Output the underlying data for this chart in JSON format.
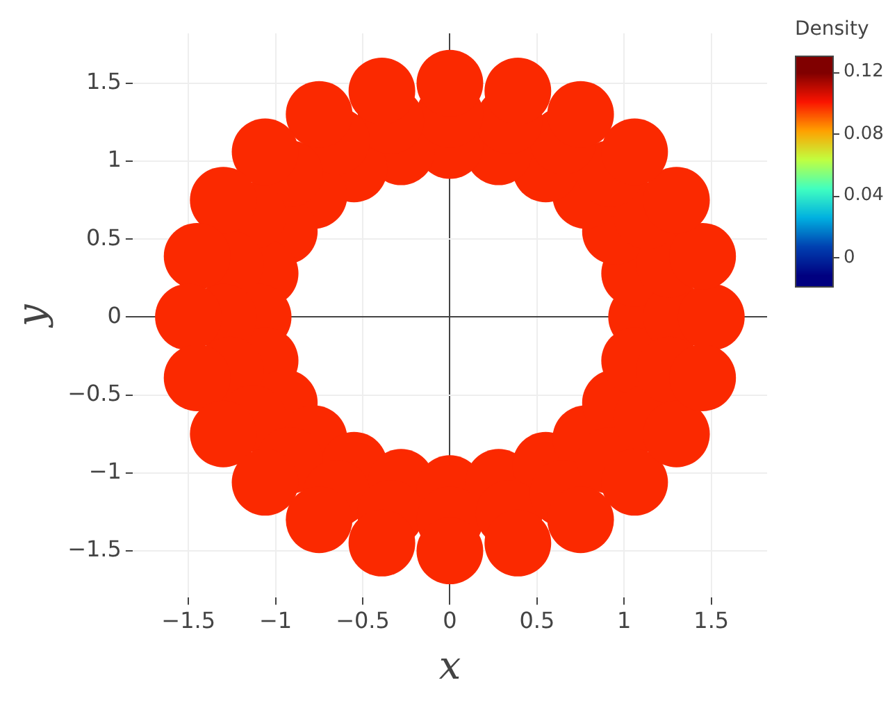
{
  "chart_data": {
    "type": "scatter",
    "xlabel": "x",
    "ylabel": "y",
    "clabel": "Density",
    "grid": true,
    "marker": "circle",
    "legend": false,
    "xlim": [
      -1.82,
      1.82
    ],
    "ylim": [
      -1.8,
      1.82
    ],
    "xticks": [
      {
        "value": -1.5,
        "label": "−1.5"
      },
      {
        "value": -1,
        "label": "−1"
      },
      {
        "value": -0.5,
        "label": "−0.5"
      },
      0,
      0.5,
      1,
      1.5
    ],
    "yticks": [
      {
        "value": -1.5,
        "label": "−1.5"
      },
      {
        "value": -1,
        "label": "−1"
      },
      {
        "value": -0.5,
        "label": "−0.5"
      },
      0,
      0.5,
      1,
      1.5
    ],
    "clim": [
      -0.019,
      0.131
    ],
    "cticks": [
      0,
      0.04,
      0.08,
      0.12
    ],
    "series": [
      {
        "x": [
          1.1,
          1.06,
          0.95,
          0.78,
          0.55,
          0.28,
          0,
          -0.28,
          -0.55,
          -0.78,
          -0.95,
          -1.06,
          -1.1,
          -1.06,
          -0.95,
          -0.78,
          -0.55,
          -0.28,
          0,
          0.28,
          0.55,
          0.78,
          0.95,
          1.06,
          1.3,
          1.26,
          1.13,
          0.92,
          0.65,
          0.34,
          0,
          -0.34,
          -0.65,
          -0.92,
          -1.13,
          -1.26,
          -1.3,
          -1.26,
          -1.13,
          -0.92,
          -0.65,
          -0.34,
          0,
          0.34,
          0.65,
          0.92,
          1.13,
          1.26,
          1.5,
          1.45,
          1.3,
          1.06,
          0.75,
          0.39,
          0,
          -0.39,
          -0.75,
          -1.06,
          -1.3,
          -1.45,
          -1.5,
          -1.45,
          -1.3,
          -1.06,
          -0.75,
          -0.39,
          0,
          0.39,
          0.75,
          1.06,
          1.3,
          1.45
        ],
        "values": [
          0,
          0.28,
          0.55,
          0.78,
          0.95,
          1.06,
          1.1,
          1.06,
          0.95,
          0.78,
          0.55,
          0.28,
          0,
          -0.28,
          -0.55,
          -0.78,
          -0.95,
          -1.06,
          -1.1,
          -1.06,
          -0.95,
          -0.78,
          -0.55,
          -0.28,
          0,
          0.34,
          0.65,
          0.92,
          1.13,
          1.26,
          1.3,
          1.26,
          1.13,
          0.92,
          0.65,
          0.34,
          0,
          -0.34,
          -0.65,
          -0.92,
          -1.13,
          -1.26,
          -1.3,
          -1.26,
          -1.13,
          -0.92,
          -0.65,
          -0.34,
          0,
          0.39,
          0.75,
          1.06,
          1.3,
          1.45,
          1.5,
          1.45,
          1.3,
          1.06,
          0.75,
          0.39,
          0,
          -0.39,
          -0.75,
          -1.06,
          -1.3,
          -1.45,
          -1.5,
          -1.45,
          -1.3,
          -1.06,
          -0.75,
          -0.39
        ],
        "cvalues": [
          0.1,
          0.1,
          0.1,
          0.1,
          0.1,
          0.1,
          0.1,
          0.1,
          0.1,
          0.1,
          0.1,
          0.1,
          0.1,
          0.1,
          0.1,
          0.1,
          0.1,
          0.1,
          0.1,
          0.1,
          0.1,
          0.1,
          0.1,
          0.1,
          0.1,
          0.1,
          0.1,
          0.1,
          0.1,
          0.1,
          0.1,
          0.1,
          0.1,
          0.1,
          0.1,
          0.1,
          0.1,
          0.1,
          0.1,
          0.1,
          0.1,
          0.1,
          0.1,
          0.1,
          0.1,
          0.1,
          0.1,
          0.1,
          0.1,
          0.1,
          0.1,
          0.1,
          0.1,
          0.1,
          0.1,
          0.1,
          0.1,
          0.1,
          0.1,
          0.1,
          0.1,
          0.1,
          0.1,
          0.1,
          0.1,
          0.1,
          0.1,
          0.1,
          0.1,
          0.1,
          0.1,
          0.1
        ]
      }
    ]
  }
}
